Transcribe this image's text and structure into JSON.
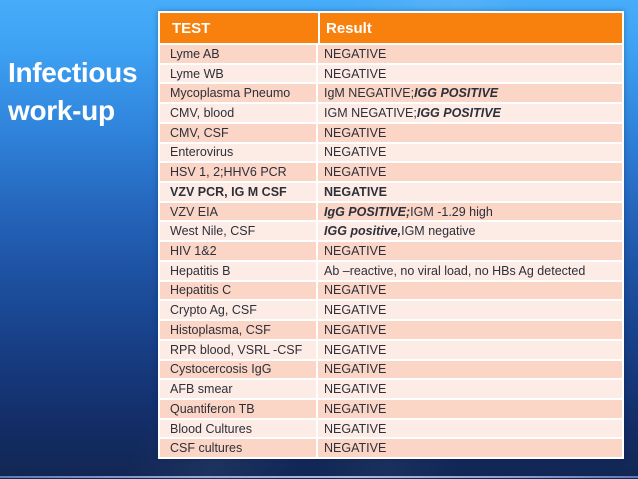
{
  "slide": {
    "title_line1": "Infectious",
    "title_line2": "work-up"
  },
  "colors": {
    "header_bg": "#F8800D",
    "row_dark": "#FBD5C5",
    "row_light": "#FDECE5",
    "text": "#2D2F3A",
    "bottom_accent": "#93A9D9",
    "bg_top": "#47ACF9",
    "bg_bottom": "#122652"
  },
  "table": {
    "headers": [
      "TEST",
      "Result"
    ],
    "rows": [
      {
        "test": "Lyme AB",
        "shade": "dark",
        "result": [
          {
            "t": "NEGATIVE"
          }
        ]
      },
      {
        "test": "Lyme WB",
        "shade": "light",
        "result": [
          {
            "t": "NEGATIVE"
          }
        ]
      },
      {
        "test": "Mycoplasma Pneumo",
        "shade": "dark",
        "result": [
          {
            "t": "IgM NEGATIVE; "
          },
          {
            "t": "IGG POSITIVE",
            "b": true,
            "i": true
          }
        ]
      },
      {
        "test": "CMV, blood",
        "shade": "light",
        "result": [
          {
            "t": "IGM NEGATIVE; "
          },
          {
            "t": "IGG POSITIVE",
            "b": true,
            "i": true
          }
        ]
      },
      {
        "test": "CMV, CSF",
        "shade": "dark",
        "result": [
          {
            "t": "NEGATIVE"
          }
        ]
      },
      {
        "test": "Enterovirus",
        "shade": "light",
        "result": [
          {
            "t": "NEGATIVE"
          }
        ]
      },
      {
        "test": "HSV 1, 2;HHV6 PCR",
        "shade": "dark",
        "result": [
          {
            "t": "NEGATIVE"
          }
        ]
      },
      {
        "test": "VZV PCR, IG M CSF",
        "shade": "light",
        "bold": true,
        "result": [
          {
            "t": "NEGATIVE",
            "b": true
          }
        ]
      },
      {
        "test": "VZV EIA",
        "shade": "dark",
        "result": [
          {
            "t": "IgG POSITIVE;",
            "b": true,
            "i": true
          },
          {
            "t": " IGM -1.29 high"
          }
        ]
      },
      {
        "test": "West Nile, CSF",
        "shade": "light",
        "result": [
          {
            "t": "IGG positive,",
            "b": true,
            "i": true
          },
          {
            "t": " IGM negative"
          }
        ]
      },
      {
        "test": "HIV 1&2",
        "shade": "dark",
        "result": [
          {
            "t": "NEGATIVE"
          }
        ]
      },
      {
        "test": "Hepatitis B",
        "shade": "light",
        "result": [
          {
            "t": "Ab –reactive, no viral load, no HBs Ag detected"
          }
        ]
      },
      {
        "test": "Hepatitis C",
        "shade": "dark",
        "result": [
          {
            "t": "NEGATIVE"
          }
        ]
      },
      {
        "test": "Crypto Ag, CSF",
        "shade": "light",
        "result": [
          {
            "t": "NEGATIVE"
          }
        ]
      },
      {
        "test": "Histoplasma, CSF",
        "shade": "dark",
        "result": [
          {
            "t": "NEGATIVE"
          }
        ]
      },
      {
        "test": "RPR blood, VSRL -CSF",
        "shade": "light",
        "result": [
          {
            "t": "NEGATIVE"
          }
        ]
      },
      {
        "test": "Cystocercosis IgG",
        "shade": "dark",
        "result": [
          {
            "t": "NEGATIVE"
          }
        ]
      },
      {
        "test": "AFB smear",
        "shade": "light",
        "result": [
          {
            "t": "NEGATIVE"
          }
        ]
      },
      {
        "test": "Quantiferon TB",
        "shade": "dark",
        "result": [
          {
            "t": "NEGATIVE"
          }
        ]
      },
      {
        "test": "Blood Cultures",
        "shade": "light",
        "result": [
          {
            "t": "NEGATIVE"
          }
        ]
      },
      {
        "test": "CSF cultures",
        "shade": "dark",
        "result": [
          {
            "t": "NEGATIVE"
          }
        ]
      }
    ]
  }
}
